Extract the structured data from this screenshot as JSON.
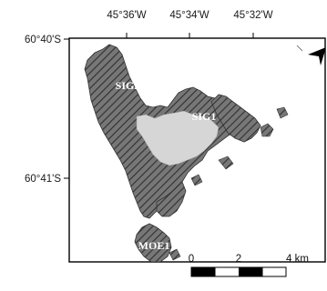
{
  "map": {
    "longitude_ticks": [
      "45°36'W",
      "45°34'W",
      "45°32'W"
    ],
    "latitude_ticks": [
      "60°40'S",
      "60°41'S"
    ],
    "site_labels": [
      "SIG2",
      "SIG1",
      "MOE1"
    ],
    "scale_bar": {
      "labels": [
        "0",
        "2",
        "4 km"
      ],
      "segments": 4
    },
    "north_arrow_icon": "north-arrow-icon",
    "colors": {
      "island_fill": "#6f6f6f",
      "hatch": "#2f2f2f",
      "ice_free_area": "#d6d6d6",
      "frame": "#000000"
    }
  }
}
